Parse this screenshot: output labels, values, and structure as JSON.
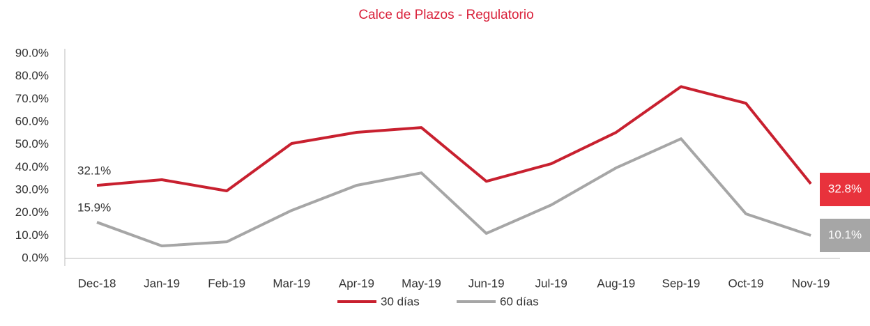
{
  "chart_data": {
    "type": "line",
    "title": "Calce de Plazos - Regulatorio",
    "categories": [
      "Dec-18",
      "Jan-19",
      "Feb-19",
      "Mar-19",
      "Apr-19",
      "May-19",
      "Jun-19",
      "Jul-19",
      "Aug-19",
      "Sep-19",
      "Oct-19",
      "Nov-19"
    ],
    "series": [
      {
        "name": "30 días",
        "color": "#c8202f",
        "values": [
          32.1,
          34.6,
          29.7,
          50.5,
          55.4,
          57.5,
          33.9,
          41.6,
          55.4,
          75.5,
          68.2,
          32.8
        ],
        "value_labels": [
          "32.1%",
          null,
          null,
          null,
          null,
          null,
          null,
          null,
          null,
          null,
          null,
          "32.8%"
        ]
      },
      {
        "name": "60 días",
        "color": "#a6a6a6",
        "values": [
          15.9,
          5.5,
          7.3,
          21.1,
          32.1,
          37.6,
          11.0,
          23.5,
          39.8,
          52.6,
          19.6,
          10.1
        ],
        "value_labels": [
          "15.9%",
          null,
          null,
          null,
          null,
          null,
          null,
          null,
          null,
          null,
          null,
          "10.1%"
        ]
      }
    ],
    "ylim": [
      0,
      90
    ],
    "yticks": [
      {
        "value": 0,
        "label": "0.0%"
      },
      {
        "value": 10,
        "label": "10.0%"
      },
      {
        "value": 20,
        "label": "20.0%"
      },
      {
        "value": 30,
        "label": "30.0%"
      },
      {
        "value": 40,
        "label": "40.0%"
      },
      {
        "value": 50,
        "label": "50.0%"
      },
      {
        "value": 60,
        "label": "60.0%"
      },
      {
        "value": 70,
        "label": "70.0%"
      },
      {
        "value": 80,
        "label": "80.0%"
      },
      {
        "value": 90,
        "label": "90.0%"
      }
    ],
    "grid": false,
    "legend": "bottom"
  }
}
